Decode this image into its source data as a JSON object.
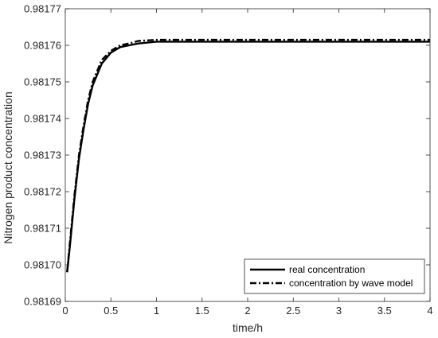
{
  "chart_data": {
    "type": "line",
    "title": "",
    "xlabel": "time/h",
    "ylabel": "Nitrogen product concentration",
    "xlim": [
      0,
      4
    ],
    "ylim": [
      0.98169,
      0.98177
    ],
    "x_ticks": [
      0,
      0.5,
      1,
      1.5,
      2,
      2.5,
      3,
      3.5,
      4
    ],
    "x_tick_labels": [
      "0",
      "0.5",
      "1",
      "1.5",
      "2",
      "2.5",
      "3",
      "3.5",
      "4"
    ],
    "y_ticks": [
      0.98169,
      0.9817,
      0.98171,
      0.98172,
      0.98173,
      0.98174,
      0.98175,
      0.98176,
      0.98177
    ],
    "y_tick_labels": [
      "0.98169",
      "0.98170",
      "0.98171",
      "0.98172",
      "0.98173",
      "0.98174",
      "0.98175",
      "0.98176",
      "0.98177"
    ],
    "grid": false,
    "legend_position": "bottom-right",
    "series": [
      {
        "name": "real concentration",
        "style": "solid",
        "color": "#000000",
        "x": [
          0.02,
          0.05,
          0.1,
          0.15,
          0.2,
          0.25,
          0.3,
          0.4,
          0.5,
          0.6,
          0.7,
          0.8,
          1.0,
          1.5,
          2.0,
          2.5,
          3.0,
          3.5,
          4.0
        ],
        "y": [
          0.981698,
          0.981705,
          0.981718,
          0.981729,
          0.981737,
          0.981744,
          0.981749,
          0.981755,
          0.981758,
          0.9817595,
          0.98176,
          0.9817605,
          0.981761,
          0.981761,
          0.981761,
          0.981761,
          0.981761,
          0.981761,
          0.981761
        ]
      },
      {
        "name": "concentration by wave model",
        "style": "dashdot",
        "color": "#000000",
        "x": [
          0.02,
          0.05,
          0.1,
          0.15,
          0.2,
          0.25,
          0.3,
          0.4,
          0.5,
          0.6,
          0.7,
          0.8,
          1.0,
          1.5,
          2.0,
          2.5,
          3.0,
          3.5,
          4.0
        ],
        "y": [
          0.981698,
          0.981706,
          0.981719,
          0.98173,
          0.981738,
          0.981745,
          0.98175,
          0.981756,
          0.9817585,
          0.98176,
          0.9817605,
          0.9817612,
          0.9817615,
          0.9817615,
          0.9817615,
          0.9817615,
          0.9817615,
          0.9817615,
          0.9817615
        ]
      }
    ]
  }
}
